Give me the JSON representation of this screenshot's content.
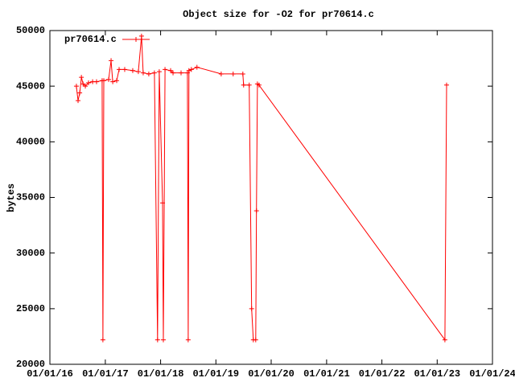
{
  "chart_data": {
    "type": "line",
    "title": "Object size for -O2 for pr70614.c",
    "y_label": "bytes",
    "legend": "top-left",
    "x": [
      "2016-06-24",
      "2016-07-05",
      "2016-07-16",
      "2016-07-27",
      "2016-08-07",
      "2016-08-22",
      "2016-09-12",
      "2016-10-09",
      "2016-11-04",
      "2016-12-11",
      "2016-12-16",
      "2016-12-22",
      "2017-01-23",
      "2017-02-08",
      "2017-02-19",
      "2017-03-17",
      "2017-04-02",
      "2017-05-09",
      "2017-07-01",
      "2017-08-07",
      "2017-08-28",
      "2017-09-08",
      "2017-10-15",
      "2017-11-21",
      "2017-12-12",
      "2017-12-23",
      "2018-01-14",
      "2018-01-19",
      "2018-01-30",
      "2018-03-08",
      "2018-03-24",
      "2018-05-16",
      "2018-06-27",
      "2018-07-02",
      "2018-07-07",
      "2018-07-23",
      "2018-08-29",
      "2019-02-05",
      "2019-04-25",
      "2019-06-28",
      "2019-07-03",
      "2019-08-09",
      "2019-08-25",
      "2019-09-05",
      "2019-09-21",
      "2019-09-26",
      "2019-10-02",
      "2019-10-13",
      "2023-02-21",
      "2023-03-04"
    ],
    "series": [
      {
        "name": "pr70614.c",
        "color": "#ff0000",
        "values": [
          45000,
          43700,
          44400,
          45800,
          45200,
          45000,
          45300,
          45400,
          45400,
          45500,
          22200,
          45500,
          45600,
          47300,
          45400,
          45500,
          46500,
          46500,
          46400,
          46300,
          49500,
          46200,
          46100,
          46200,
          22200,
          46300,
          34500,
          22200,
          46500,
          46400,
          46200,
          46200,
          46200,
          22200,
          46400,
          46500,
          46700,
          46100,
          46100,
          46100,
          45100,
          45100,
          25000,
          22200,
          22200,
          33800,
          45200,
          45100,
          22200,
          45100
        ]
      }
    ],
    "xlim": [
      "2016-01-01",
      "2024-01-01"
    ],
    "xticks": [
      {
        "value": "2016-01-01",
        "label": "01/01/16"
      },
      {
        "value": "2017-01-01",
        "label": "01/01/17"
      },
      {
        "value": "2018-01-01",
        "label": "01/01/18"
      },
      {
        "value": "2019-01-01",
        "label": "01/01/19"
      },
      {
        "value": "2020-01-01",
        "label": "01/01/20"
      },
      {
        "value": "2021-01-01",
        "label": "01/01/21"
      },
      {
        "value": "2022-01-01",
        "label": "01/01/22"
      },
      {
        "value": "2023-01-01",
        "label": "01/01/23"
      },
      {
        "value": "2024-01-01",
        "label": "01/01/24"
      }
    ],
    "ylim": [
      20000,
      50000
    ],
    "yticks": [
      20000,
      25000,
      30000,
      35000,
      40000,
      45000,
      50000
    ],
    "grid": false
  }
}
